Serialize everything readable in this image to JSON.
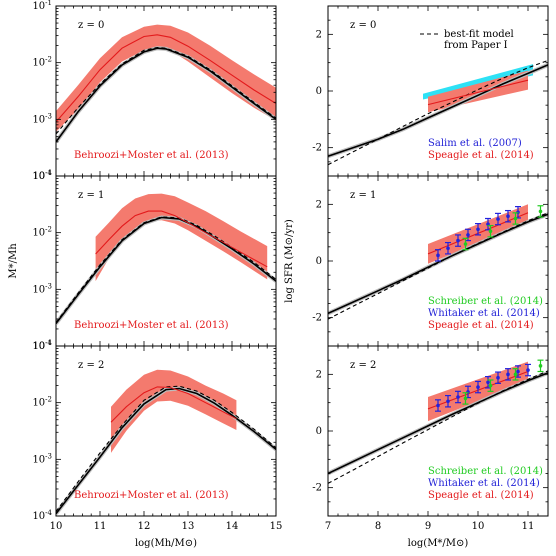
{
  "colors": {
    "obs_band": "#f47a6e",
    "obs_line": "#e31a1c",
    "model_line": "#000000",
    "model_band": "#bdbdbd",
    "salim_band": "#2de1f5",
    "red_text": "#e31a1c",
    "blue_text": "#1f1fd6",
    "green_text": "#22cc22",
    "whitaker_points": "#2222dd",
    "schreiber_points": "#22cc22"
  },
  "chart_data": [
    {
      "type": "line",
      "panel": "left-top",
      "redshift_label": "z = 0",
      "ylabel": "",
      "xlabel": "",
      "yscale": "log",
      "xlim": [
        10,
        15
      ],
      "ylim": [
        0.0001,
        0.1
      ],
      "y_tick_labels": [
        "10^-4",
        "10^-3",
        "10^-2",
        "10^-1"
      ],
      "annotations": [
        {
          "text": "Behroozi+Moster et al. (2013)",
          "color": "red"
        }
      ],
      "series": [
        {
          "style": "model-solid",
          "x": [
            10.0,
            10.5,
            11.0,
            11.5,
            12.0,
            12.3,
            12.5,
            13.0,
            13.5,
            14.0,
            14.5,
            15.0
          ],
          "y": [
            0.0004,
            0.00135,
            0.0039,
            0.0091,
            0.0155,
            0.018,
            0.0175,
            0.0125,
            0.0072,
            0.0037,
            0.0019,
            0.001
          ]
        },
        {
          "style": "model-dashed",
          "x": [
            10.0,
            10.5,
            11.0,
            11.5,
            12.0,
            12.3,
            12.5,
            13.0,
            13.5,
            14.0,
            14.5,
            15.0
          ],
          "y": [
            0.00055,
            0.0016,
            0.0042,
            0.0095,
            0.0165,
            0.0185,
            0.018,
            0.013,
            0.0075,
            0.0039,
            0.002,
            0.00105
          ]
        },
        {
          "style": "obs-median",
          "x": [
            10.0,
            10.5,
            11.0,
            11.5,
            12.0,
            12.3,
            12.6,
            13.0,
            13.5,
            14.0,
            14.5,
            15.0
          ],
          "y": [
            0.0009,
            0.0025,
            0.0075,
            0.018,
            0.029,
            0.031,
            0.028,
            0.0195,
            0.011,
            0.006,
            0.0033,
            0.0019
          ]
        },
        {
          "style": "obs-band",
          "x": [
            10.0,
            10.5,
            11.0,
            11.5,
            12.0,
            12.3,
            12.6,
            13.0,
            13.5,
            14.0,
            14.5,
            15.0
          ],
          "lower": [
            0.0006,
            0.0015,
            0.0045,
            0.0105,
            0.0165,
            0.018,
            0.0165,
            0.0105,
            0.0055,
            0.0029,
            0.0016,
            0.00095
          ],
          "upper": [
            0.0014,
            0.004,
            0.012,
            0.028,
            0.043,
            0.047,
            0.045,
            0.034,
            0.02,
            0.011,
            0.0062,
            0.0036
          ]
        }
      ]
    },
    {
      "type": "line",
      "panel": "left-middle",
      "redshift_label": "z = 1",
      "ylabel": "M*/Mh",
      "xlabel": "",
      "yscale": "log",
      "xlim": [
        10,
        15
      ],
      "ylim": [
        0.0001,
        0.1
      ],
      "y_tick_labels": [
        "10^-4",
        "10^-3",
        "10^-2",
        "10^-1"
      ],
      "annotations": [
        {
          "text": "Behroozi+Moster et al. (2013)",
          "color": "red"
        }
      ],
      "series": [
        {
          "style": "model-solid",
          "x": [
            10.0,
            10.5,
            11.0,
            11.5,
            12.0,
            12.4,
            12.8,
            13.2,
            13.6,
            14.0,
            14.5,
            15.0
          ],
          "y": [
            0.00025,
            0.0008,
            0.0025,
            0.0072,
            0.0145,
            0.0185,
            0.0175,
            0.0128,
            0.0082,
            0.0052,
            0.0028,
            0.0014
          ]
        },
        {
          "style": "model-dashed",
          "x": [
            10.0,
            10.5,
            11.0,
            11.5,
            12.0,
            12.4,
            12.8,
            13.2,
            13.6,
            14.0,
            14.5,
            15.0
          ],
          "y": [
            0.00026,
            0.00085,
            0.0027,
            0.0075,
            0.015,
            0.019,
            0.0182,
            0.0135,
            0.0088,
            0.0055,
            0.003,
            0.0015
          ]
        },
        {
          "style": "obs-median",
          "x": [
            10.9,
            11.2,
            11.5,
            11.8,
            12.1,
            12.4,
            12.7,
            13.0,
            13.4,
            13.8,
            14.2,
            14.8
          ],
          "y": [
            0.0042,
            0.0075,
            0.013,
            0.02,
            0.024,
            0.024,
            0.02,
            0.015,
            0.01,
            0.0068,
            0.0045,
            0.0025
          ]
        },
        {
          "style": "obs-band",
          "x": [
            10.9,
            11.2,
            11.5,
            11.8,
            12.1,
            12.4,
            12.7,
            13.0,
            13.4,
            13.8,
            14.2,
            14.8
          ],
          "lower": [
            0.0014,
            0.0035,
            0.0075,
            0.012,
            0.016,
            0.0165,
            0.0145,
            0.011,
            0.0072,
            0.0047,
            0.003,
            0.0015
          ],
          "upper": [
            0.0085,
            0.015,
            0.027,
            0.04,
            0.048,
            0.049,
            0.044,
            0.034,
            0.024,
            0.016,
            0.0105,
            0.0058
          ]
        }
      ]
    },
    {
      "type": "line",
      "panel": "left-bottom",
      "redshift_label": "z = 2",
      "ylabel": "",
      "xlabel": "log(Mh/M⊙)",
      "yscale": "log",
      "xlim": [
        10,
        15
      ],
      "ylim": [
        0.0001,
        0.1
      ],
      "x_tick_labels": [
        "10",
        "11",
        "12",
        "13",
        "14",
        "15"
      ],
      "y_tick_labels": [
        "10^-4",
        "10^-3",
        "10^-2",
        "10^-1"
      ],
      "annotations": [
        {
          "text": "Behroozi+Moster et al. (2013)",
          "color": "red"
        }
      ],
      "series": [
        {
          "style": "model-solid",
          "x": [
            10.0,
            10.5,
            11.0,
            11.5,
            12.0,
            12.5,
            12.8,
            13.2,
            13.6,
            14.0,
            14.5,
            15.0
          ],
          "y": [
            0.00011,
            0.00035,
            0.0011,
            0.0036,
            0.0095,
            0.017,
            0.0178,
            0.0145,
            0.0098,
            0.006,
            0.0031,
            0.0015
          ]
        },
        {
          "style": "model-dashed",
          "x": [
            10.0,
            10.5,
            11.0,
            11.5,
            12.0,
            12.5,
            12.8,
            13.2,
            13.6,
            14.0,
            14.5,
            15.0
          ],
          "y": [
            0.00012,
            0.0004,
            0.0013,
            0.004,
            0.011,
            0.019,
            0.0195,
            0.016,
            0.011,
            0.0067,
            0.0034,
            0.0016
          ]
        },
        {
          "style": "obs-median",
          "x": [
            11.25,
            11.6,
            12.0,
            12.3,
            12.6,
            13.0,
            13.4,
            13.8,
            14.1
          ],
          "y": [
            0.0045,
            0.0085,
            0.015,
            0.019,
            0.0185,
            0.0145,
            0.01,
            0.0069,
            0.0052
          ]
        },
        {
          "style": "obs-band",
          "x": [
            11.25,
            11.6,
            12.0,
            12.3,
            12.6,
            13.0,
            13.4,
            13.8,
            14.1
          ],
          "lower": [
            0.0013,
            0.0032,
            0.0072,
            0.0105,
            0.0108,
            0.0088,
            0.0062,
            0.0043,
            0.0033
          ],
          "upper": [
            0.0085,
            0.017,
            0.031,
            0.038,
            0.037,
            0.029,
            0.02,
            0.0145,
            0.011
          ]
        }
      ]
    },
    {
      "type": "line",
      "panel": "right-top",
      "redshift_label": "z = 0",
      "ylabel": "",
      "xlabel": "",
      "xlim": [
        7,
        11.4
      ],
      "ylim": [
        -3,
        3
      ],
      "y_tick_labels": [
        "-2",
        "0",
        "2"
      ],
      "legend": {
        "placement": "top-right",
        "dashed_label_lines": [
          "best-fit model",
          "from Paper I"
        ]
      },
      "annotations": [
        {
          "text": "Salim et al. (2007)",
          "color": "blue"
        },
        {
          "text": "Speagle et al. (2014)",
          "color": "red"
        }
      ],
      "series": [
        {
          "style": "model-solid",
          "x": [
            7.0,
            7.5,
            8.0,
            8.5,
            9.0,
            9.5,
            10.0,
            10.5,
            11.0,
            11.4
          ],
          "y": [
            -2.3,
            -2.0,
            -1.7,
            -1.35,
            -0.95,
            -0.55,
            -0.15,
            0.25,
            0.62,
            0.92
          ]
        },
        {
          "style": "model-dashed",
          "x": [
            7.0,
            7.5,
            8.0,
            8.5,
            9.0,
            9.5,
            10.0,
            10.5,
            11.0,
            11.4
          ],
          "y": [
            -2.6,
            -2.15,
            -1.7,
            -1.25,
            -0.8,
            -0.38,
            0.05,
            0.45,
            0.82,
            1.08
          ]
        },
        {
          "style": "salim-band",
          "x": [
            8.9,
            11.1
          ],
          "lower": [
            -0.3,
            0.55
          ],
          "upper": [
            -0.1,
            0.95
          ]
        },
        {
          "style": "obs-band",
          "x": [
            9.0,
            11.0
          ],
          "lower": [
            -0.75,
            0.05
          ],
          "upper": [
            -0.2,
            0.72
          ]
        },
        {
          "style": "obs-median",
          "x": [
            9.0,
            11.0
          ],
          "y": [
            -0.48,
            0.38
          ]
        }
      ]
    },
    {
      "type": "line",
      "panel": "right-middle",
      "redshift_label": "z = 1",
      "ylabel": "log SFR (M⊙/yr)",
      "xlabel": "",
      "xlim": [
        7,
        11.4
      ],
      "ylim": [
        -3,
        3
      ],
      "y_tick_labels": [
        "-2",
        "0",
        "2"
      ],
      "annotations": [
        {
          "text": "Schreiber et al. (2014)",
          "color": "green"
        },
        {
          "text": "Whitaker et al. (2014)",
          "color": "blue"
        },
        {
          "text": "Speagle et al. (2014)",
          "color": "red"
        }
      ],
      "series": [
        {
          "style": "model-solid",
          "x": [
            7.0,
            7.5,
            8.0,
            8.5,
            9.0,
            9.5,
            10.0,
            10.5,
            11.0,
            11.4
          ],
          "y": [
            -1.85,
            -1.45,
            -1.05,
            -0.65,
            -0.22,
            0.2,
            0.6,
            1.0,
            1.38,
            1.65
          ]
        },
        {
          "style": "model-dashed",
          "x": [
            7.0,
            7.5,
            8.0,
            8.5,
            9.0,
            9.5,
            10.0,
            10.5,
            11.0,
            11.4
          ],
          "y": [
            -2.05,
            -1.6,
            -1.15,
            -0.7,
            -0.25,
            0.2,
            0.62,
            1.02,
            1.42,
            1.7
          ]
        },
        {
          "style": "obs-band",
          "x": [
            9.0,
            11.0
          ],
          "lower": [
            -0.1,
            1.35
          ],
          "upper": [
            0.6,
            2.0
          ]
        },
        {
          "style": "obs-median",
          "x": [
            9.0,
            11.0
          ],
          "y": [
            0.25,
            1.7
          ]
        },
        {
          "style": "whitaker-points",
          "x": [
            9.2,
            9.4,
            9.6,
            9.8,
            10.0,
            10.2,
            10.4,
            10.6,
            10.8
          ],
          "y": [
            0.2,
            0.45,
            0.72,
            0.92,
            1.12,
            1.3,
            1.48,
            1.58,
            1.72
          ],
          "err": [
            0.2,
            0.2,
            0.2,
            0.2,
            0.2,
            0.2,
            0.2,
            0.2,
            0.2
          ]
        },
        {
          "style": "schreiber-points",
          "x": [
            9.75,
            10.25,
            10.75,
            11.25
          ],
          "y": [
            0.6,
            1.05,
            1.5,
            1.75
          ],
          "err": [
            0.2,
            0.2,
            0.2,
            0.2
          ]
        }
      ]
    },
    {
      "type": "line",
      "panel": "right-bottom",
      "redshift_label": "z = 2",
      "ylabel": "",
      "xlabel": "log(M*/M⊙)",
      "xlim": [
        7,
        11.4
      ],
      "ylim": [
        -3,
        3
      ],
      "x_tick_labels": [
        "7",
        "8",
        "9",
        "10",
        "11"
      ],
      "y_tick_labels": [
        "-2",
        "0",
        "2"
      ],
      "annotations": [
        {
          "text": "Schreiber et al. (2014)",
          "color": "green"
        },
        {
          "text": "Whitaker et al. (2014)",
          "color": "blue"
        },
        {
          "text": "Speagle et al. (2014)",
          "color": "red"
        }
      ],
      "series": [
        {
          "style": "model-solid",
          "x": [
            7.0,
            7.5,
            8.0,
            8.5,
            9.0,
            9.5,
            10.0,
            10.5,
            11.0,
            11.4
          ],
          "y": [
            -1.5,
            -1.08,
            -0.66,
            -0.24,
            0.18,
            0.6,
            1.0,
            1.4,
            1.78,
            2.05
          ]
        },
        {
          "style": "model-dashed",
          "x": [
            7.0,
            7.5,
            8.0,
            8.5,
            9.0,
            9.5,
            10.0,
            10.5,
            11.0,
            11.4
          ],
          "y": [
            -1.85,
            -1.38,
            -0.9,
            -0.42,
            0.05,
            0.52,
            0.98,
            1.42,
            1.82,
            2.12
          ]
        },
        {
          "style": "obs-band",
          "x": [
            9.0,
            11.0
          ],
          "lower": [
            0.35,
            1.75
          ],
          "upper": [
            1.2,
            2.45
          ]
        },
        {
          "style": "obs-median",
          "x": [
            9.0,
            11.0
          ],
          "y": [
            0.78,
            2.1
          ]
        },
        {
          "style": "whitaker-points",
          "x": [
            9.2,
            9.4,
            9.6,
            9.8,
            10.0,
            10.2,
            10.4,
            10.6,
            10.8,
            11.0
          ],
          "y": [
            0.9,
            1.05,
            1.2,
            1.38,
            1.55,
            1.72,
            1.88,
            2.0,
            2.1,
            2.15
          ],
          "err": [
            0.2,
            0.2,
            0.2,
            0.2,
            0.2,
            0.2,
            0.2,
            0.2,
            0.2,
            0.2
          ]
        },
        {
          "style": "schreiber-points",
          "x": [
            9.75,
            10.25,
            10.75,
            11.25
          ],
          "y": [
            1.15,
            1.6,
            2.0,
            2.3
          ],
          "err": [
            0.2,
            0.2,
            0.2,
            0.2
          ]
        }
      ]
    }
  ]
}
